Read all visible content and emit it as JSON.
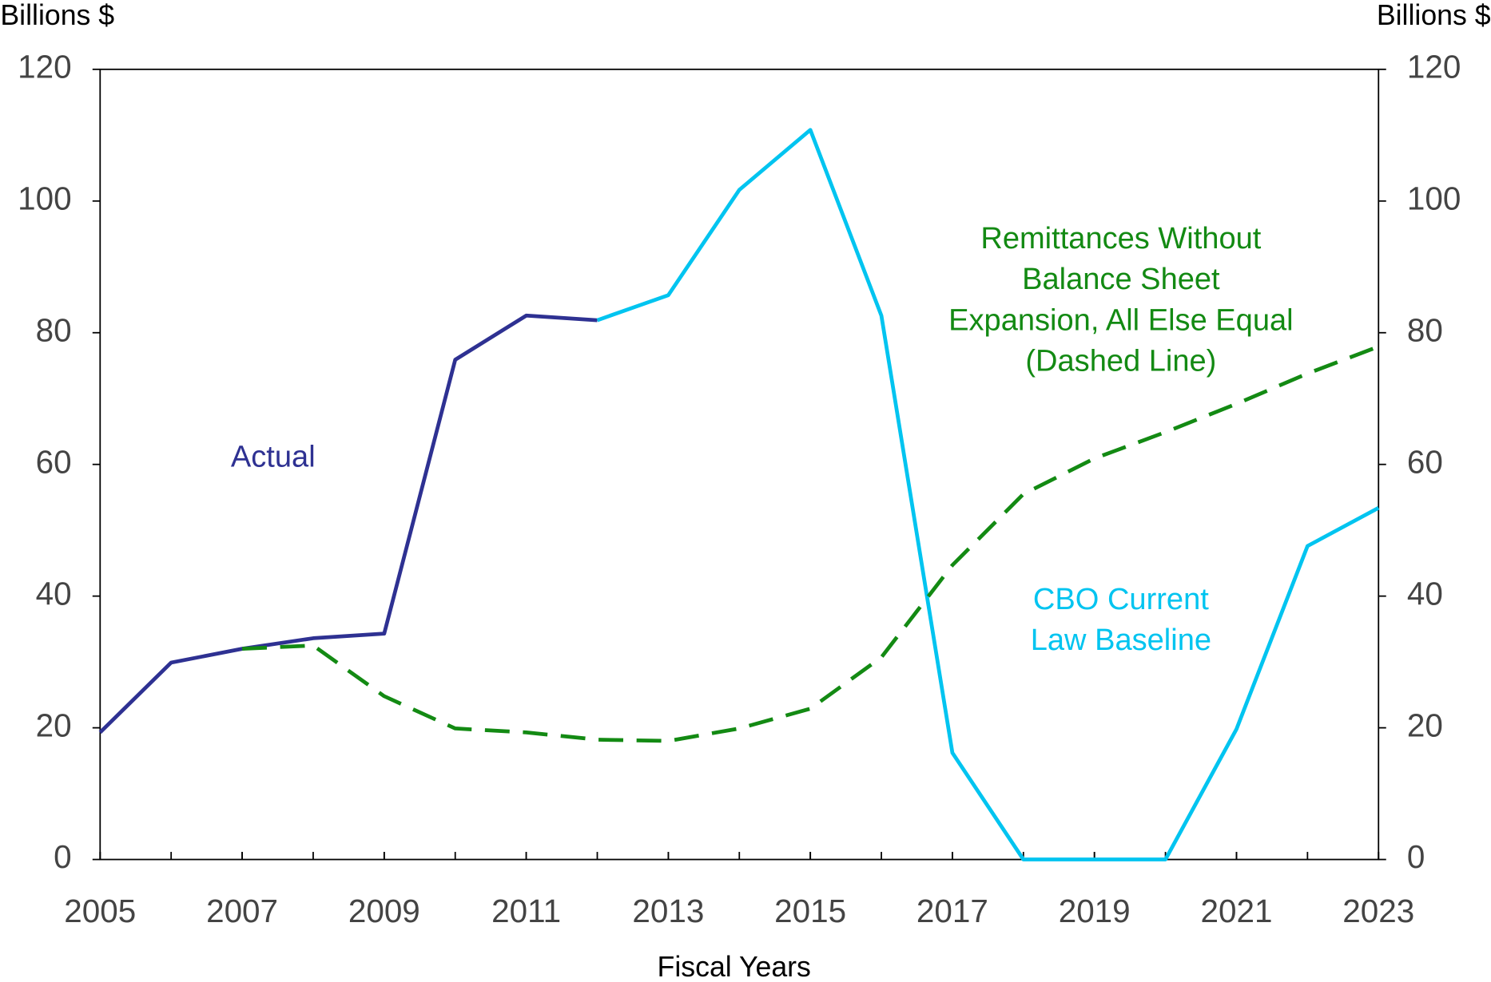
{
  "chart_data": {
    "type": "line",
    "y_label": "Billions $",
    "y2_label": "Billions $",
    "x_label": "Fiscal Years",
    "x": [
      2005,
      2006,
      2007,
      2008,
      2009,
      2010,
      2011,
      2012,
      2013,
      2014,
      2015,
      2016,
      2017,
      2018,
      2019,
      2020,
      2021,
      2022,
      2023
    ],
    "xlim": [
      2005,
      2023
    ],
    "xticks": [
      2005,
      2007,
      2009,
      2011,
      2013,
      2015,
      2017,
      2019,
      2021,
      2023
    ],
    "ylim": [
      0,
      120
    ],
    "yticks": [
      0,
      20,
      40,
      60,
      80,
      100,
      120
    ],
    "y2lim": [
      0,
      120
    ],
    "y2ticks": [
      0,
      20,
      40,
      60,
      80,
      100,
      120
    ],
    "series": [
      {
        "name": "Actual",
        "color": "#2e3192",
        "dashed": false,
        "values": [
          19.3,
          29.9,
          32.0,
          33.6,
          34.3,
          75.9,
          82.6,
          81.9,
          null,
          null,
          null,
          null,
          null,
          null,
          null,
          null,
          null,
          null,
          null
        ]
      },
      {
        "name": "CBO Current Law Baseline",
        "color": "#00c4f0",
        "dashed": false,
        "values": [
          null,
          null,
          null,
          null,
          null,
          null,
          null,
          81.9,
          85.7,
          101.7,
          110.8,
          82.6,
          16.2,
          0,
          0,
          0,
          19.8,
          47.6,
          53.4
        ]
      },
      {
        "name": "Remittances Without Balance Sheet Expansion, All Else Equal (Dashed Line)",
        "color": "#138a13",
        "dashed": true,
        "values": [
          null,
          null,
          32.0,
          32.5,
          24.8,
          19.9,
          19.3,
          18.2,
          18.0,
          19.9,
          22.9,
          30.7,
          44.7,
          55.5,
          60.9,
          64.9,
          69.2,
          73.8,
          77.9
        ]
      }
    ],
    "annotations": [
      {
        "lines": [
          "Actual"
        ],
        "color": "#2e3192"
      },
      {
        "lines": [
          "Remittances Without",
          "Balance Sheet",
          "Expansion, All Else Equal",
          "(Dashed Line)"
        ],
        "color": "#138a13"
      },
      {
        "lines": [
          "CBO Current",
          "Law Baseline"
        ],
        "color": "#00c4f0"
      }
    ]
  }
}
